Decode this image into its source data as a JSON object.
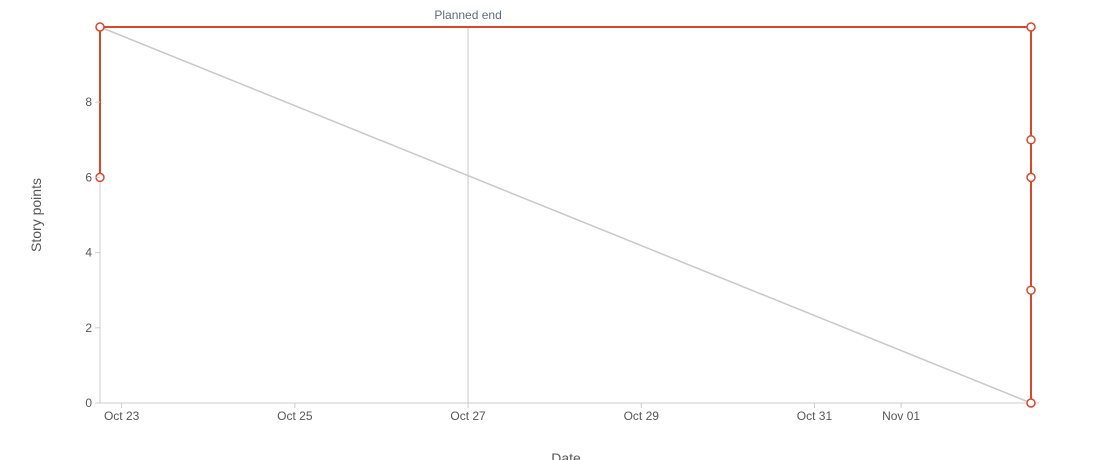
{
  "chart_data": {
    "type": "line",
    "title": "",
    "xlabel": "Date",
    "ylabel": "Story points",
    "x_ticks": [
      "Oct 23",
      "Oct 25",
      "Oct 27",
      "Oct 29",
      "Oct 31",
      "Nov 01"
    ],
    "y_ticks": [
      0,
      2,
      4,
      6,
      8
    ],
    "ylim": [
      0,
      10
    ],
    "xlim": [
      "Oct 22, 18:00",
      "Nov 02, 12:00"
    ],
    "grid": false,
    "legend": "none",
    "annotations": [
      {
        "label": "Planned end",
        "x": "Oct 27"
      }
    ],
    "series": [
      {
        "color": "#d9472b",
        "points": [
          {
            "x": "Oct 22, 18:00",
            "y": 6
          },
          {
            "x": "Oct 22, 18:00",
            "y": 10
          },
          {
            "x": "Nov 02, 12:00",
            "y": 10
          },
          {
            "x": "Nov 02, 12:00",
            "y": 7
          },
          {
            "x": "Nov 02, 12:00",
            "y": 6
          },
          {
            "x": "Nov 02, 12:00",
            "y": 3
          },
          {
            "x": "Nov 02, 12:00",
            "y": 0
          }
        ]
      },
      {
        "color": "#c8c8c8",
        "points": [
          {
            "x": "Oct 22, 18:00",
            "y": 10
          },
          {
            "x": "Nov 02, 12:00",
            "y": 0
          }
        ]
      }
    ],
    "colors": {
      "axis": "#cccccc",
      "tick_text": "#555555",
      "annotation_text": "#5d6b80",
      "annotation_line": "#c8c8c8"
    }
  }
}
